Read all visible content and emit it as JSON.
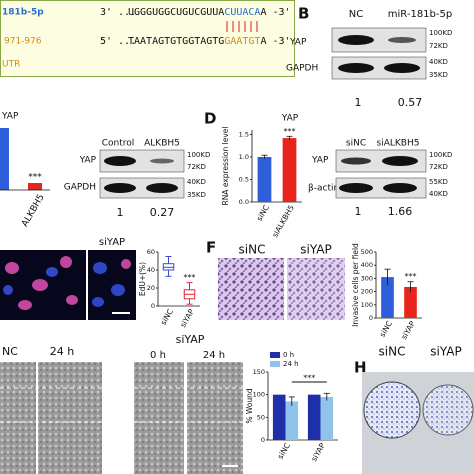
{
  "panel_a": {
    "mirna": "181b-5p",
    "mirna_end5": "3'  ...",
    "mirna_seq": "UGGGUGGCUGUCGUUA",
    "mirna_seed": "CUUACA",
    "mirna_end3": "A -3'",
    "site": "971-976",
    "utr_end5": "5'  ...",
    "utr_seq": "TAATAGTGTGGTAGTG",
    "utr_seed": "GAATGT",
    "utr_end3": "A -3'",
    "utr": "UTR"
  },
  "panel_b": {
    "label": "B",
    "lanes": [
      "NC",
      "miR-181b-5p"
    ],
    "rows": [
      "YAP",
      "GAPDH"
    ],
    "markers": [
      "100KD",
      "72KD",
      "40KD",
      "35KD"
    ],
    "quant": [
      1,
      0.57
    ]
  },
  "panel_c": {
    "title": "YAP",
    "sig": "***",
    "category": "ALKBH5",
    "lanes": [
      "Control",
      "ALKBH5"
    ],
    "rows": [
      "YAP",
      "GAPDH"
    ],
    "markers": [
      "100KD",
      "72KD",
      "40KD",
      "35KD"
    ],
    "quant": [
      1,
      0.27
    ]
  },
  "panel_d": {
    "label": "D",
    "chart": {
      "type": "bar",
      "title": "YAP",
      "y_label": "RNA expression level",
      "categories": [
        "siNC",
        "siALKBH5"
      ],
      "values": [
        1.0,
        1.42
      ],
      "errors": [
        0.04,
        0.04
      ],
      "colors": [
        "#2f5fd8",
        "#e8251d"
      ],
      "ylim": [
        0,
        1.6
      ],
      "yticks": [
        {
          "value": 0,
          "label": "0.0"
        },
        0.5,
        {
          "value": 1,
          "label": "1.0"
        },
        1.5
      ],
      "sig": "***"
    },
    "lanes": [
      "siNC",
      "siALKBH5"
    ],
    "rows": [
      "YAP",
      "β-actin"
    ],
    "markers": [
      "100KD",
      "72KD",
      "55KD",
      "40KD"
    ],
    "quant": [
      1,
      1.66
    ]
  },
  "panel_e": {
    "image_label": "siYAP",
    "chart": {
      "type": "box",
      "y_label": "EdU+(%)",
      "categories": [
        "siNC",
        "siYAP"
      ],
      "colors": [
        "#3d48d6",
        "#e0283a"
      ],
      "boxes": [
        {
          "min": 33,
          "q1": 40,
          "median": 43,
          "q3": 47,
          "max": 55
        },
        {
          "min": 2,
          "q1": 8,
          "median": 13,
          "q3": 18,
          "max": 26
        }
      ],
      "ylim": [
        0,
        60
      ],
      "yticks": [
        0,
        20,
        40,
        60
      ],
      "sig": "***"
    }
  },
  "panel_f": {
    "label": "F",
    "image_labels": [
      "siNC",
      "siYAP"
    ],
    "chart": {
      "type": "bar",
      "y_label": "Invasive cells per field",
      "categories": [
        "siNC",
        "siYAP"
      ],
      "values": [
        310,
        235
      ],
      "errors": [
        60,
        40
      ],
      "colors": [
        "#2f5fd8",
        "#e8251d"
      ],
      "ylim": [
        0,
        500
      ],
      "yticks": [
        0,
        100,
        200,
        300,
        400,
        500
      ],
      "sig": "***"
    }
  },
  "panel_g": {
    "group_nc": "NC",
    "nc_time": "24 h",
    "group_si": "siYAP",
    "si_times": [
      "0 h",
      "24 h"
    ],
    "chart": {
      "type": "grouped_bar",
      "y_label": "% Wound",
      "categories": [
        "siNC",
        "siYAP"
      ],
      "series": [
        {
          "name": "0 h",
          "color": "#1f2fa8",
          "values": [
            100,
            100
          ]
        },
        {
          "name": "24 h",
          "color": "#8fc3ea",
          "values": [
            85,
            95
          ],
          "errors": [
            10,
            8
          ]
        }
      ],
      "ylim": [
        0,
        150
      ],
      "yticks": [
        0,
        50,
        100,
        150
      ],
      "sig": "***"
    }
  },
  "panel_h": {
    "label": "H",
    "labels": [
      "siNC",
      "siYAP"
    ]
  }
}
